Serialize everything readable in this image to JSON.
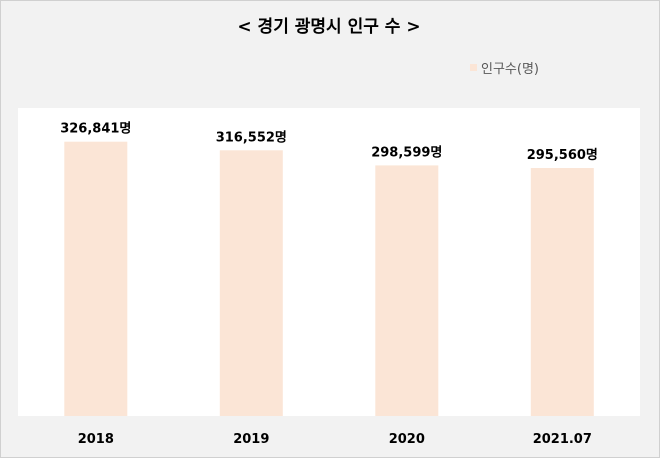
{
  "chart_data": {
    "type": "bar",
    "title": "< 경기 광명시 인구 수 >",
    "categories": [
      "2018",
      "2019",
      "2020",
      "2021.07"
    ],
    "series": [
      {
        "name": "인구수(명)",
        "values": [
          326841,
          316552,
          298599,
          295560
        ],
        "labels": [
          "326,841명",
          "316,552명",
          "298,599명",
          "295,560명"
        ]
      }
    ],
    "ylim": [
      0,
      367000
    ],
    "grid": false,
    "legend_position": "top-right",
    "bar_color": "#fbe5d6",
    "plot_background": "#ffffff",
    "outer_background": "#f2f2f2"
  }
}
